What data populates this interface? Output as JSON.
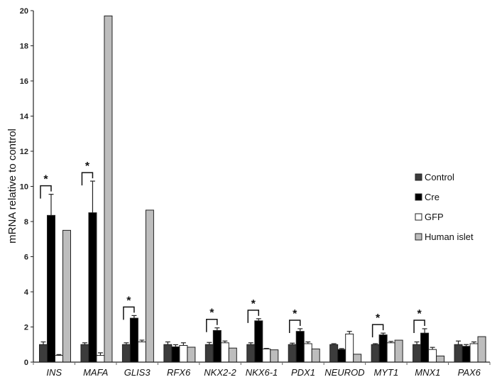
{
  "chart_data": {
    "type": "bar",
    "title": "",
    "xlabel": "",
    "ylabel": "mRNA relative to control",
    "ylim": [
      0,
      20
    ],
    "yticks": [
      0,
      2,
      4,
      6,
      8,
      10,
      12,
      14,
      16,
      18,
      20
    ],
    "grid": false,
    "legend_position": "right",
    "categories": [
      "INS",
      "MAFA",
      "GLIS3",
      "RFX6",
      "NKX2-2",
      "NKX6-1",
      "PDX1",
      "NEUROD",
      "MYT1",
      "MNX1",
      "PAX6"
    ],
    "series": [
      {
        "name": "Control",
        "color": "#3c3c3c",
        "values": [
          1.0,
          1.0,
          1.0,
          1.0,
          1.0,
          1.0,
          1.0,
          1.0,
          1.0,
          1.0,
          1.0
        ],
        "errors": [
          0.15,
          0.1,
          0.1,
          0.15,
          0.12,
          0.1,
          0.08,
          0.05,
          0.05,
          0.15,
          0.2
        ]
      },
      {
        "name": "Cre",
        "color": "#000000",
        "values": [
          8.35,
          8.5,
          2.5,
          0.87,
          1.8,
          2.35,
          1.75,
          0.72,
          1.55,
          1.65,
          0.9
        ],
        "errors": [
          1.2,
          1.8,
          0.15,
          0.12,
          0.15,
          0.12,
          0.15,
          0.05,
          0.1,
          0.25,
          0.1
        ]
      },
      {
        "name": "GFP",
        "color": "#ffffff",
        "values": [
          0.38,
          0.38,
          1.15,
          0.95,
          1.1,
          0.75,
          1.05,
          1.6,
          1.1,
          0.72,
          1.05
        ],
        "errors": [
          0.05,
          0.15,
          0.1,
          0.15,
          0.1,
          0.03,
          0.1,
          0.15,
          0.08,
          0.12,
          0.1
        ]
      },
      {
        "name": "Human islet",
        "color": "#bdbdbd",
        "values": [
          7.5,
          19.7,
          8.65,
          0.85,
          0.8,
          0.7,
          0.75,
          0.45,
          1.25,
          0.35,
          1.45
        ],
        "errors": [
          0,
          0,
          0,
          0,
          0,
          0,
          0,
          0,
          0,
          0,
          0
        ]
      }
    ],
    "annotations": [
      {
        "category": "INS",
        "text": "*"
      },
      {
        "category": "MAFA",
        "text": "*"
      },
      {
        "category": "GLIS3",
        "text": "*"
      },
      {
        "category": "NKX2-2",
        "text": "*"
      },
      {
        "category": "NKX6-1",
        "text": "*"
      },
      {
        "category": "PDX1",
        "text": "*"
      },
      {
        "category": "MYT1",
        "text": "*"
      },
      {
        "category": "MNX1",
        "text": "*"
      }
    ]
  },
  "legend": {
    "items": [
      {
        "label": "Control",
        "color": "#3c3c3c"
      },
      {
        "label": "Cre",
        "color": "#000000"
      },
      {
        "label": "GFP",
        "color": "#ffffff"
      },
      {
        "label": "Human islet",
        "color": "#bdbdbd"
      }
    ]
  }
}
